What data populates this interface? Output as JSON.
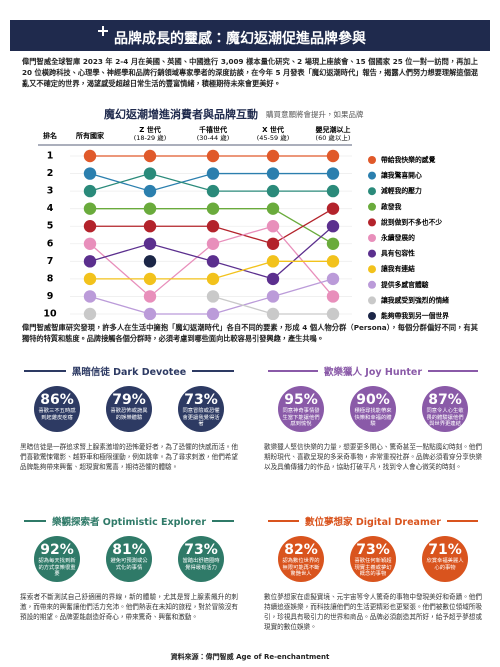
{
  "header": {
    "title": "品牌成長的靈感：魔幻返潮促進品牌參與"
  },
  "intro": "偉門智威全球智庫 2023 年 2-4 月在美國、英國、中國進行 3,009 樣本量化研究、2 場現上座談會、15 個國家 25 位一對一訪問，再加上 20 位橫跨科技、心理學、神經學和品牌行銷領域專家學者的深度訪談，在今年 5 月發表「魔幻返潮時代」報告，揭露人們努力想要理解這個混亂又不確定的世界，渴望感受超越日常生活的豐富情緒，積極期待未來會更美好。",
  "chart_data": {
    "type": "bump",
    "title": "魔幻返潮增進消費者與品牌互動",
    "subtitle": "購買意願將會提升，如果品牌",
    "rank_label": "排名",
    "categories": [
      "所有國家",
      "Z 世代",
      "千禧世代",
      "X 世代",
      "嬰兒潮以上"
    ],
    "category_sublabels": [
      null,
      "(18-29 歲)",
      "(30-44 歲)",
      "(45-59 歲)",
      "(60 歲以上)"
    ],
    "ylim": [
      1,
      10
    ],
    "yticks": [
      1,
      2,
      3,
      4,
      5,
      6,
      7,
      8,
      9,
      10
    ],
    "y_reversed": true,
    "grid": true,
    "series": [
      {
        "name": "帶給我快樂的感覺",
        "color": "#e0592a",
        "values": [
          1,
          1,
          1,
          1,
          1
        ]
      },
      {
        "name": "讓我驚喜開心",
        "color": "#2b7fae",
        "values": [
          2,
          3,
          2,
          2,
          2
        ]
      },
      {
        "name": "減輕我的壓力",
        "color": "#2a8a7a",
        "values": [
          3,
          2,
          3,
          3,
          3
        ]
      },
      {
        "name": "啟發我",
        "color": "#6aab3c",
        "values": [
          4,
          4,
          4,
          4,
          6
        ]
      },
      {
        "name": "說到做到不多也不少",
        "color": "#b3232b",
        "values": [
          5,
          5,
          5,
          6,
          4
        ]
      },
      {
        "name": "永續發展的",
        "color": "#e88fbb",
        "values": [
          6,
          9,
          6,
          5,
          9
        ]
      },
      {
        "name": "具有包容性",
        "color": "#5b2f8e",
        "values": [
          7,
          6,
          7,
          8,
          5
        ]
      },
      {
        "name": "讓我有連結",
        "color": "#f2c21c",
        "values": [
          8,
          8,
          8,
          7,
          7
        ]
      },
      {
        "name": "提供多感官體驗",
        "color": "#bb9bd9",
        "values": [
          9,
          10,
          10,
          9,
          8
        ]
      },
      {
        "name": "讓我感受到強烈的情緒",
        "color": "#c9c9c9",
        "values": [
          10,
          null,
          9,
          10,
          10
        ]
      },
      {
        "name": "能夠帶我到另一個世界",
        "color": "#1c2647",
        "values": [
          null,
          7,
          null,
          null,
          null
        ]
      }
    ]
  },
  "summary": "偉門智威智庫研究發現，許多人在生活中擁抱「魔幻返潮時代」各自不同的要素，形成 4 個人物分群（Persona），每個分群偏好不同，有其獨特的特質和態度。品牌接觸各個分群時，必須考慮到哪些面向比較容易引發興趣，產生共鳴。",
  "personas": [
    {
      "title": "黑暗信徒 Dark Devotee",
      "color": "#2d3a63",
      "stats": [
        {
          "value": "86%",
          "text": "喜歡三不五時感到起雞皮疙瘩"
        },
        {
          "value": "79%",
          "text": "喜歡恐怖或詭異的娛樂體驗"
        },
        {
          "value": "73%",
          "text": "同意冒險或恐懼會更讓我覺得活著"
        }
      ],
      "description": "黑暗信徒是一群追求腎上腺素激增的恐怖愛好者，為了恐懼的快感而活。他們喜歡驚悚電影、越野車和極限運動，例如跳傘。為了尋求刺激，他們希望品牌能夠帶來興奮、超現實和驚喜，期待恐懼的體驗。"
    },
    {
      "title": "歡樂獵人 Joy Hunter",
      "color": "#8a5aa8",
      "stats": [
        {
          "value": "95%",
          "text": "同意神奇事情發生當下能讓他們感到愉悅"
        },
        {
          "value": "90%",
          "text": "積極尋找能帶來快樂和幸福的體驗"
        },
        {
          "value": "87%",
          "text": "同意令人心生敬畏的體驗讓他們與世界更連結"
        }
      ],
      "description": "歡樂獵人堅信快樂的力量，想要更多開心、驚奇甚至一點點魔幻時刻。他們期盼現代、喜歡呈現的多采奇事物，非常重視社群。品牌必須看穿分享快樂以及具備傳播力的作品，協助打破平凡，找到令人會心微笑的時刻。"
    },
    {
      "title": "樂觀探索者 Optimistic Explorer",
      "color": "#2f7a68",
      "stats": [
        {
          "value": "92%",
          "text": "認為每天找到新的方式享樂很重要"
        },
        {
          "value": "81%",
          "text": "避免可預測或公式化的事情"
        },
        {
          "value": "73%",
          "text": "當踏出舒適圈時覺得最有活力"
        }
      ],
      "description": "探索者不斷測試自己舒適圈的界線，新的體驗，尤其是腎上腺素飆升的刺激，而帶來的興奮讓他們活力充沛。他們熱衷在未知的旅程，對於冒險沒有預設的期望。品牌要能創造好奇心，帶來驚奇、興奮和激動。"
    },
    {
      "title": "數位夢想家 Digital Dreamer",
      "color": "#d9541e",
      "stats": [
        {
          "value": "82%",
          "text": "認為數位世界的無限可能再不斷驚艷世人"
        },
        {
          "value": "73%",
          "text": "喜歡任何新穎超現實主義或夢幻概念的事物"
        },
        {
          "value": "71%",
          "text": "欣賞幸福美麗人心的事物"
        }
      ],
      "description": "數位夢想家在虛擬實境、元宇宙等令人驚奇的事物中發現美好和奇蹟。他們持續追逐娛樂，而科技讓他們的生活更精彩也更緊張。他們被數位領域所吸引，珍視具有吸引力的世界和商品。品牌必須創造其所好，給予超乎夢想或現實的數位娛樂。"
    }
  ],
  "footer": "資料來源：偉門智威 Age of Re-enchantment"
}
